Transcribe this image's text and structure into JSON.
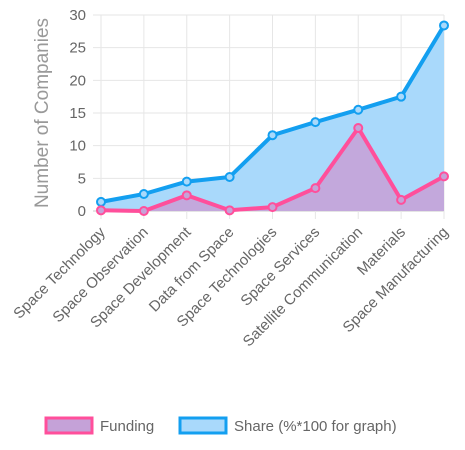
{
  "chart_data": {
    "type": "line",
    "categories": [
      "Space Technology",
      "Space Observation",
      "Space Development",
      "Data from Space",
      "Space Technologies",
      "Space Services",
      "Satellite Communication",
      "Materials",
      "Space Manufacturing"
    ],
    "series": [
      {
        "name": "Funding",
        "values": [
          0.1,
          0.0,
          2.4,
          0.1,
          0.6,
          3.5,
          12.7,
          1.7,
          5.3
        ],
        "line_color": "#ff4f9b",
        "fill_color": "#c5a2d8"
      },
      {
        "name": "Share (%*100 for graph)",
        "values": [
          1.4,
          2.6,
          4.5,
          5.2,
          11.6,
          13.6,
          15.5,
          17.5,
          28.4
        ],
        "line_color": "#139ff0",
        "fill_color": "#a9d9fb"
      }
    ],
    "ylabel": "Number of Companies",
    "xlabel": "",
    "ylim": [
      0,
      30
    ],
    "yticks": [
      0,
      5,
      10,
      15,
      20,
      25,
      30
    ],
    "grid": true,
    "legend_position": "bottom"
  }
}
